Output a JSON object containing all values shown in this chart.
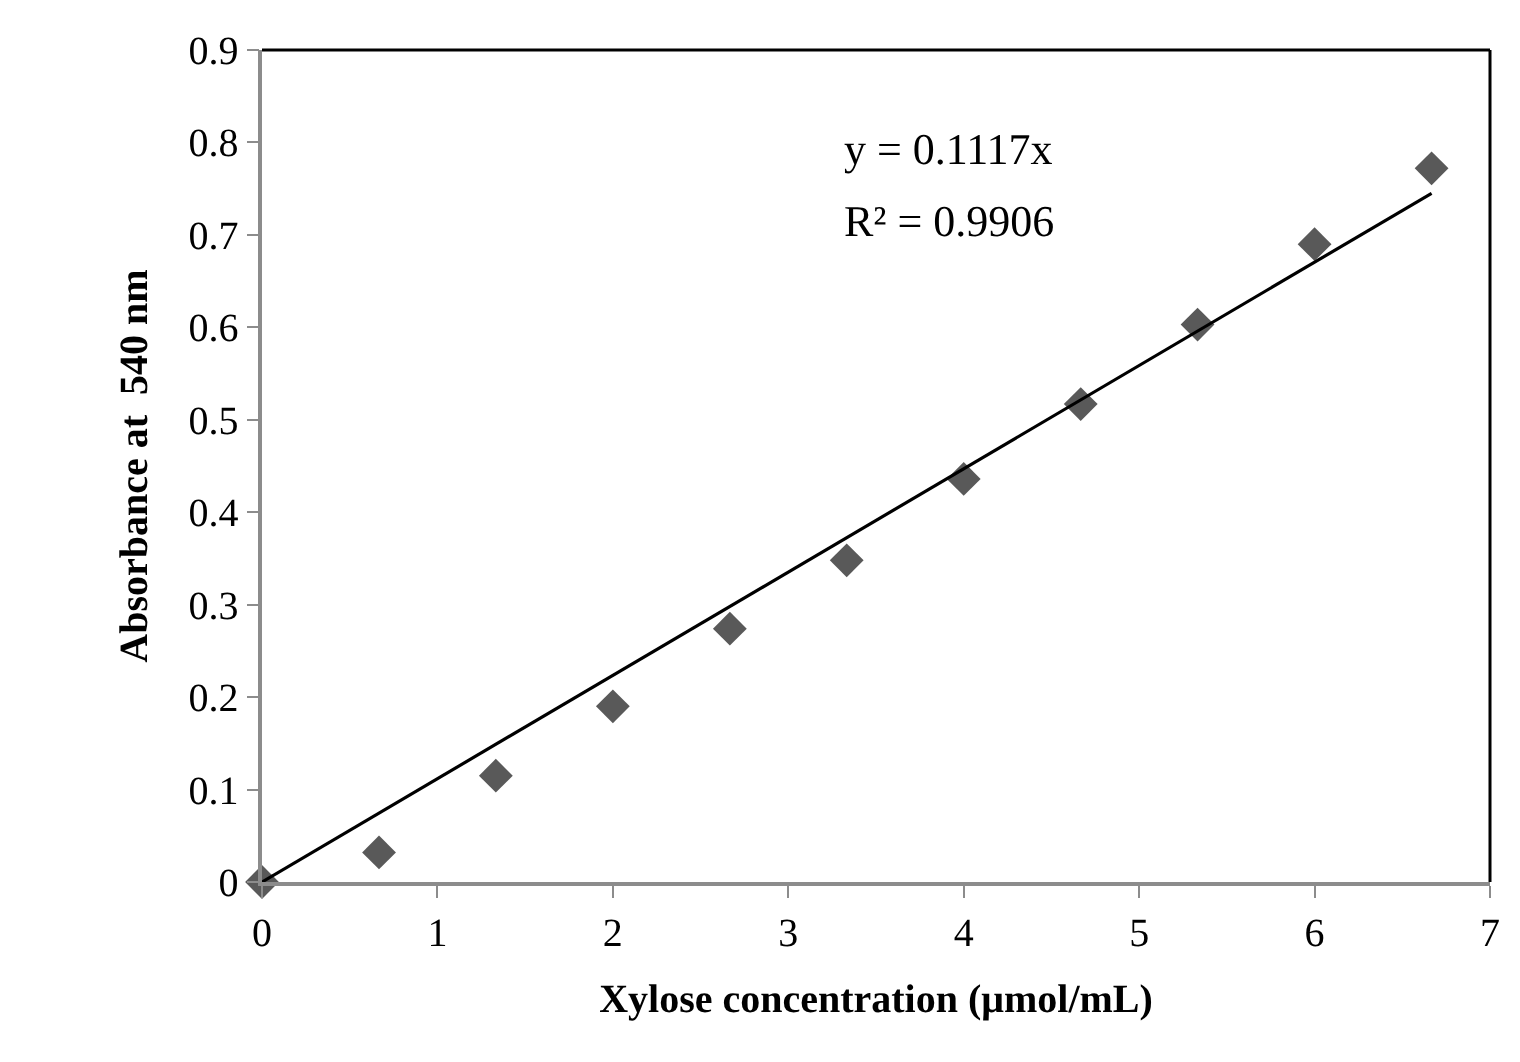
{
  "chart_data": {
    "type": "scatter",
    "xlabel": "Xylose concentration (μmol/mL)",
    "ylabel": "Absorbance at  540 nm",
    "marker": "diamond",
    "x": [
      0,
      0.667,
      1.333,
      2,
      2.667,
      3.333,
      4,
      4.667,
      5.333,
      6,
      6.667
    ],
    "series": [
      {
        "color": "#595959",
        "values": [
          0,
          0.032,
          0.115,
          0.19,
          0.274,
          0.348,
          0.436,
          0.517,
          0.603,
          0.69,
          0.772
        ]
      },
      {
        "type": "line",
        "color": "#000000",
        "marker": "none",
        "line_style": "solid",
        "x": [
          0,
          6.667
        ],
        "values": [
          0,
          0.745
        ]
      }
    ],
    "annotations": [
      "y = 0.1117x",
      "R² = 0.9906"
    ],
    "xlim": [
      0,
      7
    ],
    "xticks": [
      0,
      1,
      2,
      3,
      4,
      5,
      6,
      7
    ],
    "ylim": [
      0,
      0.9
    ],
    "yticks": [
      0,
      0.1,
      0.2,
      0.3,
      0.4,
      0.5,
      0.6,
      0.7,
      0.8,
      0.9
    ]
  }
}
